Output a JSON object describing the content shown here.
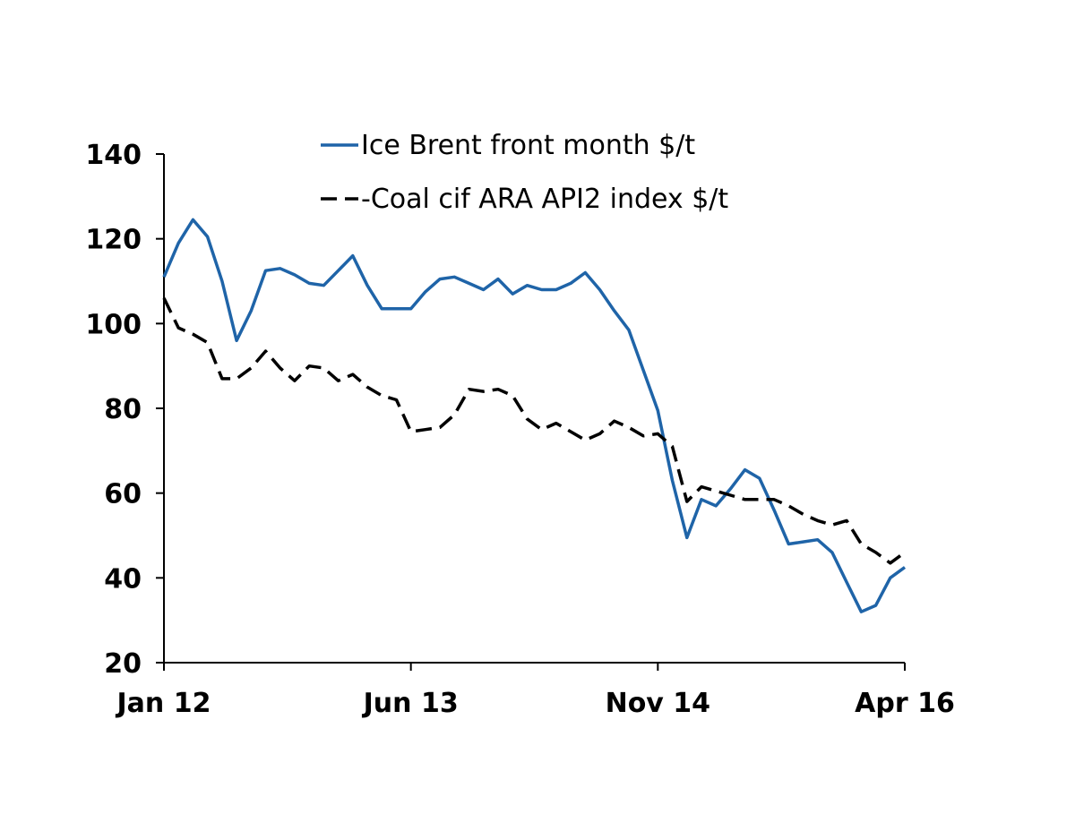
{
  "chart_data": {
    "type": "line",
    "title": "",
    "xlabel": "",
    "ylabel": "",
    "ylim": [
      20,
      140
    ],
    "yticks": [
      20,
      40,
      60,
      80,
      100,
      120,
      140
    ],
    "x_tick_labels": [
      "Jan 12",
      "Jun 13",
      "Nov 14",
      "Apr 16"
    ],
    "x_tick_indices": [
      0,
      17,
      34,
      51
    ],
    "legend_position": "top",
    "grid": false,
    "series": [
      {
        "name": "Ice Brent front month $/t",
        "color": "#1f64a8",
        "style": "solid",
        "values": [
          111,
          119,
          124.5,
          120.5,
          110,
          96,
          103,
          112.5,
          113,
          111.5,
          109.5,
          109,
          112.5,
          116,
          109,
          103.5,
          103.5,
          103.5,
          107.5,
          110.5,
          111,
          109.5,
          108,
          110.5,
          107,
          109,
          108,
          108,
          109.5,
          112,
          108,
          103,
          98.5,
          89,
          79.5,
          63,
          49.5,
          58.5,
          57,
          61,
          65.5,
          63.5,
          56,
          48,
          48.5,
          49,
          46,
          39,
          32,
          33.5,
          40,
          42.5
        ]
      },
      {
        "name": "Coal cif ARA API2 index $/t",
        "color": "#000000",
        "style": "dashed",
        "values": [
          106,
          99,
          97.5,
          95.5,
          87,
          87,
          89.5,
          93.5,
          89.5,
          86.5,
          90,
          89.5,
          86.5,
          88,
          85,
          83,
          82,
          74.5,
          75,
          75.5,
          78.5,
          84.5,
          84,
          84.5,
          83,
          77.5,
          75,
          76.5,
          74.5,
          72.5,
          74,
          77,
          75.5,
          73.5,
          74,
          71,
          58,
          61.5,
          60.5,
          59.5,
          58.5,
          58.5,
          58.5,
          57,
          55,
          53.5,
          52.5,
          53.5,
          48,
          46,
          43.5,
          46
        ]
      }
    ]
  }
}
